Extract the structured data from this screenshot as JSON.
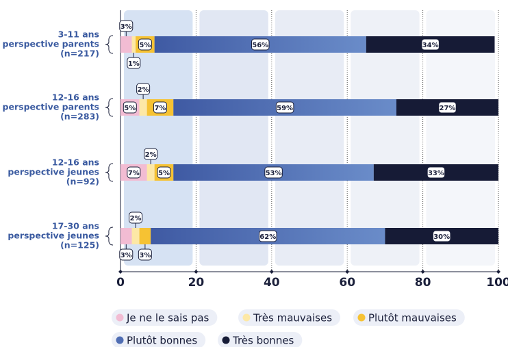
{
  "chart_data": {
    "type": "stacked-bar-horizontal",
    "categories": [
      [
        "3-11 ans",
        "perspective parents",
        "(n=217)"
      ],
      [
        "12-16 ans",
        "perspective parents",
        "(n=283)"
      ],
      [
        "12-16 ans",
        "perspective jeunes",
        "(n=92)"
      ],
      [
        "17-30 ans",
        "perspective jeunes",
        "(n=125)"
      ]
    ],
    "series": [
      {
        "name": "Je ne le sais pas",
        "color": "#f2bcd3",
        "values": [
          3,
          5,
          7,
          3
        ],
        "value_labels": [
          "3%",
          "5%",
          "7%",
          "3%"
        ]
      },
      {
        "name": "Très mauvaises",
        "color": "#fde8a6",
        "values": [
          1,
          2,
          2,
          2
        ],
        "value_labels": [
          "1%",
          "2%",
          "2%",
          "2%"
        ]
      },
      {
        "name": "Plutôt mauvaises",
        "color": "#f6c233",
        "values": [
          5,
          7,
          5,
          3
        ],
        "value_labels": [
          "5%",
          "7%",
          "5%",
          "3%"
        ]
      },
      {
        "name": "Plutôt bonnes",
        "color": "#4f6db3",
        "values": [
          56,
          59,
          53,
          62
        ],
        "value_labels": [
          "56%",
          "59%",
          "53%",
          "62%"
        ]
      },
      {
        "name": "Très bonnes",
        "color": "#161b36",
        "values": [
          34,
          27,
          33,
          30
        ],
        "value_labels": [
          "34%",
          "27%",
          "33%",
          "30%"
        ]
      }
    ],
    "xlim": [
      0,
      100
    ],
    "xticks": [
      0,
      20,
      40,
      60,
      80,
      100
    ],
    "grid": true
  }
}
